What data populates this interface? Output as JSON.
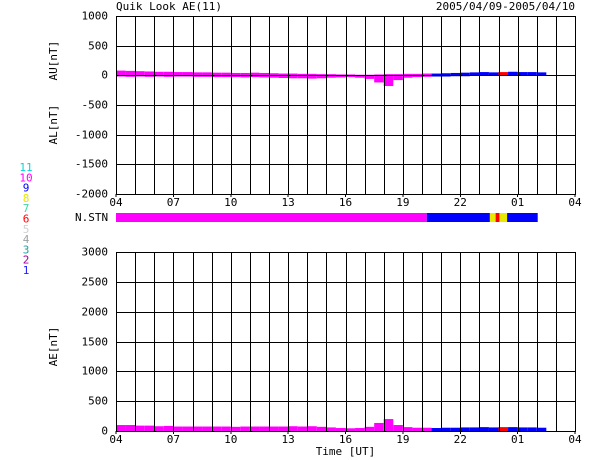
{
  "title": "Quik Look AE(11)",
  "date_range": "2005/04/09-2005/04/10",
  "legend": [
    {
      "label": "11",
      "color": "#00d8d8"
    },
    {
      "label": "10",
      "color": "#ff00ff"
    },
    {
      "label": "9",
      "color": "#0000ff"
    },
    {
      "label": "8",
      "color": "#e8e800"
    },
    {
      "label": "7",
      "color": "#40d8a0"
    },
    {
      "label": "6",
      "color": "#ff0000"
    },
    {
      "label": "5",
      "color": "#d0d0d0"
    },
    {
      "label": "4",
      "color": "#a0a0a0"
    },
    {
      "label": "3",
      "color": "#20a0a0"
    },
    {
      "label": "2",
      "color": "#a000a0"
    },
    {
      "label": "1",
      "color": "#2020ff"
    }
  ],
  "stations": {
    "label": "N.STN",
    "bins": [
      0,
      16.25,
      19.55,
      19.85,
      20.05,
      20.45,
      22.05
    ],
    "counts": [
      10,
      9,
      8,
      6,
      8,
      9
    ]
  },
  "chart_data": [
    {
      "type": "area",
      "ylabel_upper": "AU[nT]",
      "ylabel_lower": "AL[nT]",
      "x": [
        0,
        0.5,
        1,
        1.5,
        2,
        2.5,
        3,
        3.5,
        4,
        4.5,
        5,
        5.5,
        6,
        6.5,
        7,
        7.5,
        8,
        8.5,
        9,
        9.5,
        10,
        10.5,
        11,
        11.5,
        12,
        12.5,
        13,
        13.5,
        14,
        14.5,
        15,
        15.5,
        16,
        16.5,
        17,
        17.5,
        18,
        18.5,
        19,
        19.5,
        20,
        20.5,
        21,
        21.5,
        22
      ],
      "series": [
        {
          "values": [
            80,
            75,
            70,
            65,
            60,
            60,
            55,
            55,
            50,
            50,
            45,
            45,
            40,
            40,
            45,
            40,
            35,
            30,
            30,
            25,
            25,
            20,
            20,
            15,
            15,
            10,
            10,
            15,
            20,
            20,
            25,
            25,
            30,
            30,
            35,
            40,
            45,
            50,
            55,
            50,
            55,
            60,
            55,
            55,
            50
          ]
        },
        {
          "values": [
            -20,
            -25,
            -20,
            -25,
            -20,
            -25,
            -20,
            -20,
            -25,
            -25,
            -30,
            -30,
            -30,
            -35,
            -30,
            -35,
            -40,
            -45,
            -50,
            -50,
            -55,
            -50,
            -40,
            -35,
            -30,
            -40,
            -60,
            -120,
            -180,
            -80,
            -40,
            -30,
            -25,
            -20,
            -20,
            -15,
            -15,
            -10,
            -10,
            -10,
            -10,
            -5,
            -5,
            -5,
            -5
          ]
        }
      ],
      "xlim": [
        0,
        24
      ],
      "xticks": [
        {
          "value": 0,
          "label": "04"
        },
        {
          "value": 3,
          "label": "07"
        },
        {
          "value": 6,
          "label": "10"
        },
        {
          "value": 9,
          "label": "13"
        },
        {
          "value": 12,
          "label": "16"
        },
        {
          "value": 15,
          "label": "19"
        },
        {
          "value": 18,
          "label": "22"
        },
        {
          "value": 21,
          "label": "01"
        },
        {
          "value": 24,
          "label": "04"
        }
      ],
      "x_grid_step": 1,
      "ylim": [
        -2000,
        1000
      ],
      "yticks": [
        -2000,
        -1500,
        -1000,
        -500,
        0,
        500,
        1000
      ],
      "grid": true
    },
    {
      "type": "area",
      "ylabel": "AE[nT]",
      "xlabel": "Time [UT]",
      "x": [
        0,
        0.5,
        1,
        1.5,
        2,
        2.5,
        3,
        3.5,
        4,
        4.5,
        5,
        5.5,
        6,
        6.5,
        7,
        7.5,
        8,
        8.5,
        9,
        9.5,
        10,
        10.5,
        11,
        11.5,
        12,
        12.5,
        13,
        13.5,
        14,
        14.5,
        15,
        15.5,
        16,
        16.5,
        17,
        17.5,
        18,
        18.5,
        19,
        19.5,
        20,
        20.5,
        21,
        21.5,
        22
      ],
      "series": [
        {
          "values": [
            100,
            100,
            90,
            90,
            80,
            85,
            75,
            75,
            75,
            75,
            75,
            75,
            70,
            75,
            75,
            75,
            75,
            75,
            80,
            75,
            80,
            70,
            60,
            50,
            45,
            50,
            70,
            135,
            200,
            100,
            65,
            55,
            55,
            50,
            55,
            55,
            60,
            60,
            65,
            60,
            65,
            65,
            60,
            60,
            55
          ]
        }
      ],
      "xlim": [
        0,
        24
      ],
      "xticks": [
        {
          "value": 0,
          "label": "04"
        },
        {
          "value": 3,
          "label": "07"
        },
        {
          "value": 6,
          "label": "10"
        },
        {
          "value": 9,
          "label": "13"
        },
        {
          "value": 12,
          "label": "16"
        },
        {
          "value": 15,
          "label": "19"
        },
        {
          "value": 18,
          "label": "22"
        },
        {
          "value": 21,
          "label": "01"
        },
        {
          "value": 24,
          "label": "04"
        }
      ],
      "x_grid_step": 1,
      "ylim": [
        0,
        3000
      ],
      "yticks": [
        0,
        500,
        1000,
        1500,
        2000,
        2500,
        3000
      ],
      "grid": true
    }
  ]
}
